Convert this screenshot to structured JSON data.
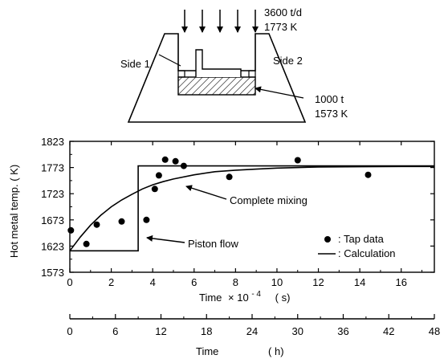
{
  "chart_data": {
    "type": "scatter",
    "ylabel": "Hot metal temp. ( K)",
    "xlabel_main": "Time",
    "xlabel_factor": "× 10",
    "xlabel_exponent": "- 4",
    "xlabel_unit": "( s)",
    "xlim": [
      0,
      17.6
    ],
    "ylim": [
      1573,
      1823
    ],
    "x_ticks": [
      0,
      2,
      4,
      6,
      8,
      10,
      12,
      14,
      16
    ],
    "y_ticks": [
      1573,
      1623,
      1673,
      1723,
      1773,
      1823
    ],
    "secondary_axis": {
      "label_main": "Time",
      "label_unit": "( h)",
      "ticks": [
        0,
        6,
        12,
        18,
        24,
        30,
        36,
        42,
        48
      ],
      "range": [
        0,
        48
      ]
    },
    "series": [
      {
        "name": ": Tap data",
        "kind": "points",
        "x": [
          0.05,
          0.8,
          1.3,
          2.5,
          3.7,
          4.1,
          4.3,
          4.6,
          5.1,
          5.5,
          7.7,
          11.0,
          14.4
        ],
        "y": [
          1653,
          1627,
          1664,
          1670,
          1673,
          1732,
          1758,
          1788,
          1785,
          1776,
          1755,
          1787,
          1759
        ]
      },
      {
        "name": ": Calculation",
        "kind": "line",
        "curves": [
          {
            "label": "Complete mixing",
            "x": [
              0,
              0.5,
              1,
              1.5,
              2,
              2.5,
              3,
              3.5,
              4,
              4.5,
              5,
              6,
              7,
              8,
              9,
              10,
              12,
              14,
              16,
              17.6
            ],
            "y": [
              1614,
              1640,
              1663,
              1682,
              1698,
              1711,
              1722,
              1732,
              1740,
              1746,
              1751,
              1759,
              1765,
              1768,
              1770,
              1772,
              1774,
              1774.5,
              1775,
              1775
            ]
          },
          {
            "label": "Piston  flow",
            "x": [
              0,
              3.3,
              3.3,
              17.6
            ],
            "y": [
              1614,
              1614,
              1776,
              1776
            ]
          }
        ]
      }
    ],
    "annotations": [
      "Complete mixing",
      "Piston  flow"
    ]
  },
  "diagram": {
    "side1_label": "Side 1",
    "side2_label": "Side 2",
    "inflow_rate": "3600 t/d",
    "inflow_temp": "1773 K",
    "bath_mass": "1000 t",
    "bath_temp": "1573 K"
  }
}
